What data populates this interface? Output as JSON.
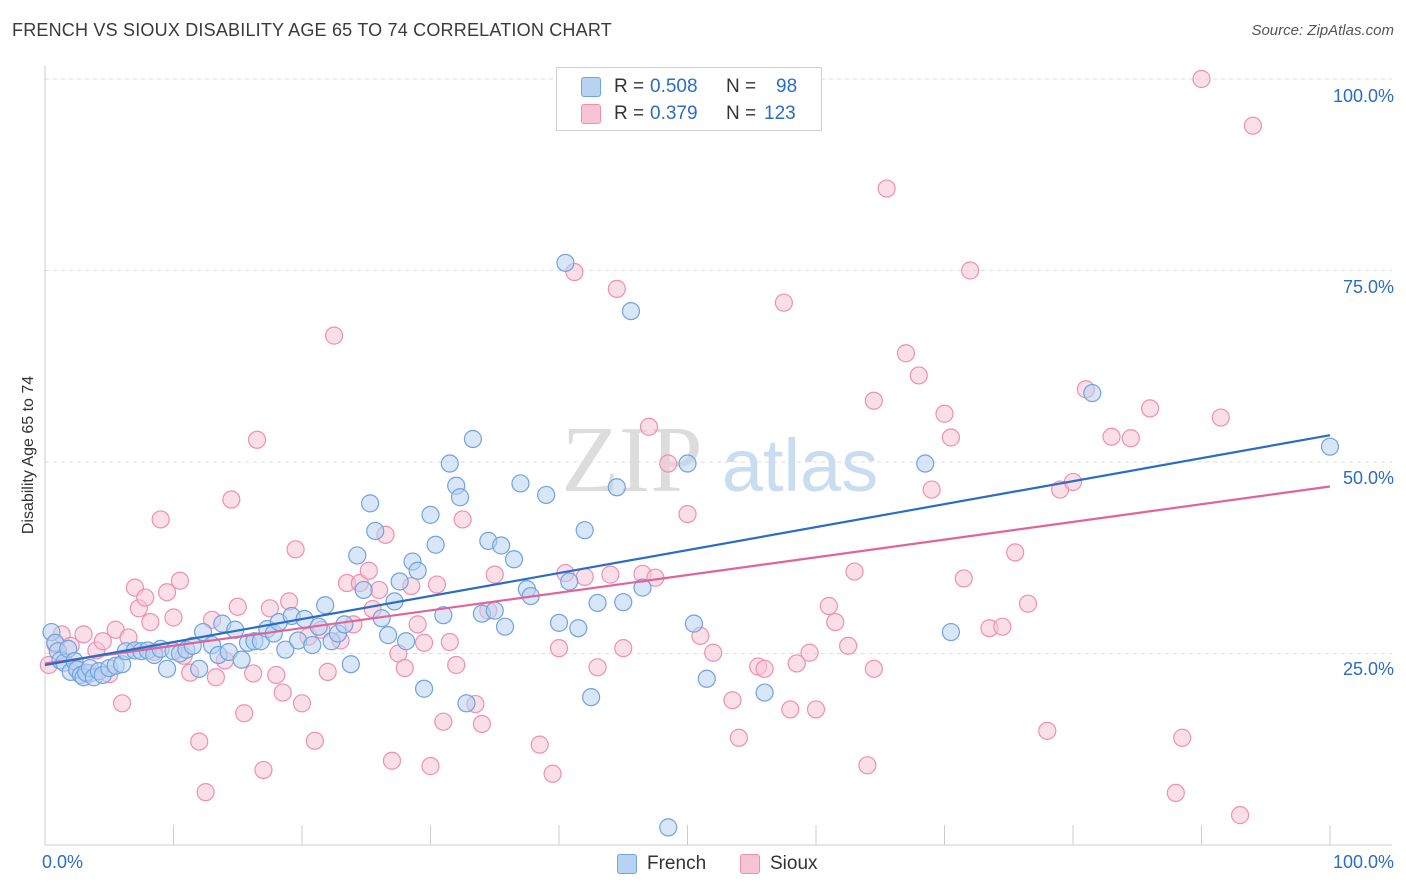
{
  "header": {
    "title": "FRENCH VS SIOUX DISABILITY AGE 65 TO 74 CORRELATION CHART",
    "source": "Source: ZipAtlas.com"
  },
  "watermark": {
    "zip": "ZIP",
    "atlas": "atlas"
  },
  "colors": {
    "french": "#6fa3e0",
    "french_fill": "#b8d2f2",
    "sioux": "#f08fb0",
    "sioux_fill": "#f7c4d6",
    "french_line": "#2b6cc4",
    "sioux_line": "#e0649a",
    "tick_text": "#2b6cc4"
  },
  "legend": {
    "french": {
      "r_label": "R =",
      "r_value": "0.508",
      "n_label": "N =",
      "n_value": "98"
    },
    "sioux": {
      "r_label": "R =",
      "r_value": "0.379",
      "n_label": "N =",
      "n_value": "123"
    }
  },
  "chart_data": {
    "type": "scatter",
    "title": "FRENCH VS SIOUX DISABILITY AGE 65 TO 74 CORRELATION CHART",
    "xlabel": "",
    "ylabel": "Disability Age 65 to 74",
    "xlim": [
      0,
      100
    ],
    "ylim": [
      0,
      100
    ],
    "x_ticks": [
      "0.0%",
      "100.0%"
    ],
    "y_ticks": [
      "25.0%",
      "50.0%",
      "75.0%",
      "100.0%"
    ],
    "y_tick_values": [
      25,
      50,
      75,
      100
    ],
    "grid": true,
    "legend_position": "top-center",
    "series": [
      {
        "name": "French",
        "trend": {
          "x": [
            0,
            100
          ],
          "y": [
            23.5,
            53.5
          ]
        },
        "points": [
          [
            0.5,
            27.8
          ],
          [
            0.8,
            26.4
          ],
          [
            1.0,
            25.3
          ],
          [
            1.2,
            24.1
          ],
          [
            1.5,
            23.8
          ],
          [
            1.8,
            25.6
          ],
          [
            2.0,
            22.6
          ],
          [
            2.3,
            24.0
          ],
          [
            2.5,
            22.9
          ],
          [
            2.8,
            22.2
          ],
          [
            3.0,
            21.9
          ],
          [
            3.2,
            22.5
          ],
          [
            3.5,
            23.1
          ],
          [
            3.8,
            21.9
          ],
          [
            4.2,
            22.7
          ],
          [
            4.5,
            22.2
          ],
          [
            5.0,
            23.1
          ],
          [
            5.5,
            23.4
          ],
          [
            6.0,
            23.6
          ],
          [
            6.3,
            25.3
          ],
          [
            7.0,
            25.4
          ],
          [
            7.5,
            25.3
          ],
          [
            8.0,
            25.4
          ],
          [
            8.5,
            24.8
          ],
          [
            9.0,
            25.6
          ],
          [
            9.5,
            23.0
          ],
          [
            10.0,
            25.3
          ],
          [
            10.5,
            25.0
          ],
          [
            11.0,
            25.5
          ],
          [
            11.5,
            26.0
          ],
          [
            12.0,
            23.0
          ],
          [
            12.3,
            27.8
          ],
          [
            13.0,
            26.1
          ],
          [
            13.5,
            24.8
          ],
          [
            13.8,
            28.9
          ],
          [
            14.3,
            25.2
          ],
          [
            14.8,
            28.1
          ],
          [
            15.3,
            24.2
          ],
          [
            15.8,
            26.4
          ],
          [
            16.3,
            26.6
          ],
          [
            16.8,
            26.6
          ],
          [
            17.3,
            28.2
          ],
          [
            17.8,
            27.6
          ],
          [
            18.2,
            29.1
          ],
          [
            18.7,
            25.5
          ],
          [
            19.2,
            29.9
          ],
          [
            19.7,
            26.7
          ],
          [
            20.2,
            29.5
          ],
          [
            20.8,
            26.1
          ],
          [
            21.3,
            28.5
          ],
          [
            21.8,
            31.3
          ],
          [
            22.3,
            26.6
          ],
          [
            22.8,
            27.6
          ],
          [
            23.3,
            28.8
          ],
          [
            23.8,
            23.6
          ],
          [
            24.3,
            37.8
          ],
          [
            24.8,
            33.3
          ],
          [
            25.3,
            44.6
          ],
          [
            25.7,
            41.0
          ],
          [
            26.2,
            29.6
          ],
          [
            26.7,
            27.4
          ],
          [
            27.2,
            31.8
          ],
          [
            27.6,
            34.4
          ],
          [
            28.1,
            26.6
          ],
          [
            28.6,
            37.0
          ],
          [
            29.0,
            35.8
          ],
          [
            29.5,
            20.4
          ],
          [
            30.0,
            43.1
          ],
          [
            30.4,
            39.2
          ],
          [
            31.0,
            30.0
          ],
          [
            31.5,
            49.8
          ],
          [
            32.0,
            46.9
          ],
          [
            32.3,
            45.4
          ],
          [
            32.8,
            18.5
          ],
          [
            33.3,
            53.0
          ],
          [
            34.0,
            30.2
          ],
          [
            34.5,
            39.7
          ],
          [
            35.0,
            30.6
          ],
          [
            35.5,
            39.1
          ],
          [
            35.8,
            28.5
          ],
          [
            36.5,
            37.3
          ],
          [
            37.0,
            47.2
          ],
          [
            37.5,
            33.4
          ],
          [
            37.8,
            32.5
          ],
          [
            39.0,
            45.7
          ],
          [
            40.0,
            29.0
          ],
          [
            40.5,
            76.0
          ],
          [
            40.8,
            34.4
          ],
          [
            41.5,
            28.3
          ],
          [
            42.0,
            41.1
          ],
          [
            42.5,
            19.3
          ],
          [
            43.0,
            31.6
          ],
          [
            44.5,
            46.7
          ],
          [
            45.0,
            31.7
          ],
          [
            45.6,
            69.7
          ],
          [
            46.5,
            33.6
          ],
          [
            48.5,
            2.3
          ],
          [
            50.0,
            49.8
          ],
          [
            50.5,
            28.9
          ],
          [
            51.5,
            21.7
          ],
          [
            56.0,
            19.9
          ],
          [
            68.5,
            49.8
          ],
          [
            70.5,
            27.8
          ],
          [
            81.5,
            59.0
          ],
          [
            100.0,
            52.0
          ]
        ]
      },
      {
        "name": "Sioux",
        "trend": {
          "x": [
            0,
            100
          ],
          "y": [
            23.7,
            46.8
          ]
        },
        "points": [
          [
            0.3,
            23.5
          ],
          [
            0.8,
            26.2
          ],
          [
            1.3,
            27.5
          ],
          [
            2.0,
            26.0
          ],
          [
            2.5,
            23.0
          ],
          [
            3.0,
            27.5
          ],
          [
            3.5,
            22.4
          ],
          [
            4.0,
            25.4
          ],
          [
            4.5,
            26.6
          ],
          [
            5.0,
            22.3
          ],
          [
            5.5,
            28.1
          ],
          [
            6.0,
            18.5
          ],
          [
            6.5,
            27.1
          ],
          [
            7.0,
            33.6
          ],
          [
            7.3,
            30.9
          ],
          [
            7.8,
            32.3
          ],
          [
            8.2,
            29.1
          ],
          [
            8.5,
            25.2
          ],
          [
            9.0,
            42.5
          ],
          [
            9.5,
            33.0
          ],
          [
            10.0,
            29.7
          ],
          [
            10.5,
            34.5
          ],
          [
            10.8,
            24.7
          ],
          [
            11.3,
            22.5
          ],
          [
            12.0,
            13.5
          ],
          [
            12.5,
            6.9
          ],
          [
            13.0,
            29.4
          ],
          [
            13.3,
            21.9
          ],
          [
            14.0,
            24.1
          ],
          [
            14.5,
            45.1
          ],
          [
            15.0,
            31.1
          ],
          [
            15.5,
            17.2
          ],
          [
            16.2,
            22.4
          ],
          [
            16.5,
            52.9
          ],
          [
            17.0,
            9.8
          ],
          [
            17.5,
            30.9
          ],
          [
            18.0,
            22.2
          ],
          [
            18.5,
            19.9
          ],
          [
            19.0,
            31.8
          ],
          [
            19.5,
            38.6
          ],
          [
            20.0,
            18.5
          ],
          [
            20.5,
            27.2
          ],
          [
            21.0,
            13.6
          ],
          [
            21.5,
            28.1
          ],
          [
            22.0,
            22.6
          ],
          [
            22.5,
            66.5
          ],
          [
            23.0,
            26.7
          ],
          [
            23.5,
            34.2
          ],
          [
            24.0,
            28.8
          ],
          [
            24.5,
            34.2
          ],
          [
            25.2,
            35.8
          ],
          [
            25.5,
            30.8
          ],
          [
            26.0,
            33.3
          ],
          [
            26.5,
            40.5
          ],
          [
            27.0,
            11.0
          ],
          [
            27.5,
            25.0
          ],
          [
            28.0,
            23.1
          ],
          [
            28.5,
            33.8
          ],
          [
            29.0,
            28.8
          ],
          [
            29.5,
            26.4
          ],
          [
            30.0,
            10.3
          ],
          [
            30.5,
            34.0
          ],
          [
            31.0,
            16.1
          ],
          [
            31.5,
            26.5
          ],
          [
            32.0,
            23.5
          ],
          [
            32.5,
            42.5
          ],
          [
            33.5,
            18.4
          ],
          [
            34.0,
            15.8
          ],
          [
            34.5,
            30.6
          ],
          [
            35.0,
            35.3
          ],
          [
            38.5,
            13.1
          ],
          [
            39.5,
            9.3
          ],
          [
            40.0,
            25.7
          ],
          [
            40.5,
            35.5
          ],
          [
            41.2,
            74.8
          ],
          [
            42.0,
            35.0
          ],
          [
            43.0,
            23.2
          ],
          [
            44.0,
            35.3
          ],
          [
            44.5,
            72.6
          ],
          [
            45.0,
            25.7
          ],
          [
            46.5,
            35.4
          ],
          [
            47.0,
            54.6
          ],
          [
            47.5,
            34.9
          ],
          [
            48.5,
            49.8
          ],
          [
            50.0,
            43.2
          ],
          [
            51.0,
            27.3
          ],
          [
            52.0,
            25.1
          ],
          [
            53.5,
            18.9
          ],
          [
            54.0,
            14.0
          ],
          [
            55.5,
            23.3
          ],
          [
            56.0,
            23.0
          ],
          [
            57.5,
            70.8
          ],
          [
            58.0,
            17.7
          ],
          [
            58.5,
            23.7
          ],
          [
            59.5,
            25.1
          ],
          [
            60.0,
            17.7
          ],
          [
            61.0,
            31.2
          ],
          [
            61.5,
            29.1
          ],
          [
            62.5,
            26.0
          ],
          [
            63.0,
            35.7
          ],
          [
            64.0,
            10.4
          ],
          [
            64.5,
            58.0
          ],
          [
            64.5,
            23.0
          ],
          [
            65.5,
            85.7
          ],
          [
            67.0,
            64.2
          ],
          [
            68.0,
            61.3
          ],
          [
            69.0,
            46.4
          ],
          [
            70.0,
            56.3
          ],
          [
            70.5,
            53.2
          ],
          [
            71.5,
            34.8
          ],
          [
            72.0,
            75.0
          ],
          [
            73.5,
            28.3
          ],
          [
            74.5,
            28.5
          ],
          [
            75.5,
            38.2
          ],
          [
            76.5,
            31.5
          ],
          [
            78.0,
            14.9
          ],
          [
            79.0,
            46.4
          ],
          [
            80.0,
            47.4
          ],
          [
            81.0,
            59.5
          ],
          [
            83.0,
            53.3
          ],
          [
            84.5,
            53.1
          ],
          [
            86.0,
            57.0
          ],
          [
            88.0,
            6.8
          ],
          [
            88.5,
            14.0
          ],
          [
            90.0,
            100.0
          ],
          [
            91.5,
            55.8
          ],
          [
            93.0,
            3.9
          ],
          [
            94.0,
            93.9
          ]
        ]
      }
    ]
  }
}
